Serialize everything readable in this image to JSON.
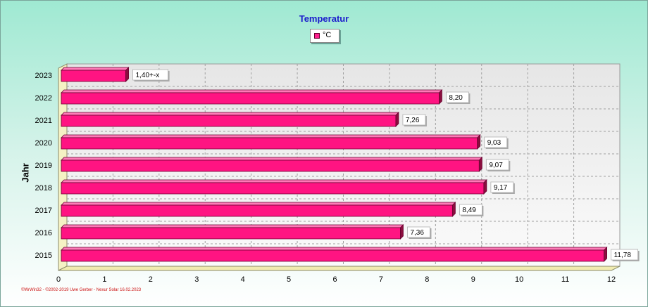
{
  "colors": {
    "bar_front": "#ff1482",
    "bar_top": "#ff7ab8",
    "bar_side": "#8a0e3e",
    "title": "#1b1bcc",
    "footer": "#cc1010"
  },
  "footer_text": "©WrWin32 - ©2002-2019 Uwe Gerber - Nexur Solar 16.02.2023",
  "chart_data": {
    "type": "bar",
    "orientation": "horizontal",
    "title": "Temperatur",
    "ylabel": "Jahr",
    "xlabel": "",
    "legend": [
      {
        "name": "°C",
        "color": "#ff1482"
      }
    ],
    "legend_position": "top-center",
    "grid": true,
    "xlim": [
      0,
      12
    ],
    "xticks": [
      "0",
      "1",
      "2",
      "3",
      "4",
      "5",
      "6",
      "7",
      "8",
      "9",
      "10",
      "11",
      "12"
    ],
    "categories": [
      "2023",
      "2022",
      "2021",
      "2020",
      "2019",
      "2018",
      "2017",
      "2016",
      "2015"
    ],
    "values": [
      1.4,
      8.2,
      7.26,
      9.03,
      9.07,
      9.17,
      8.49,
      7.36,
      11.78
    ],
    "value_labels": [
      "1,40+-x",
      "8,20",
      "7,26",
      "9,03",
      "9,07",
      "9,17",
      "8,49",
      "7,36",
      "11,78"
    ]
  }
}
